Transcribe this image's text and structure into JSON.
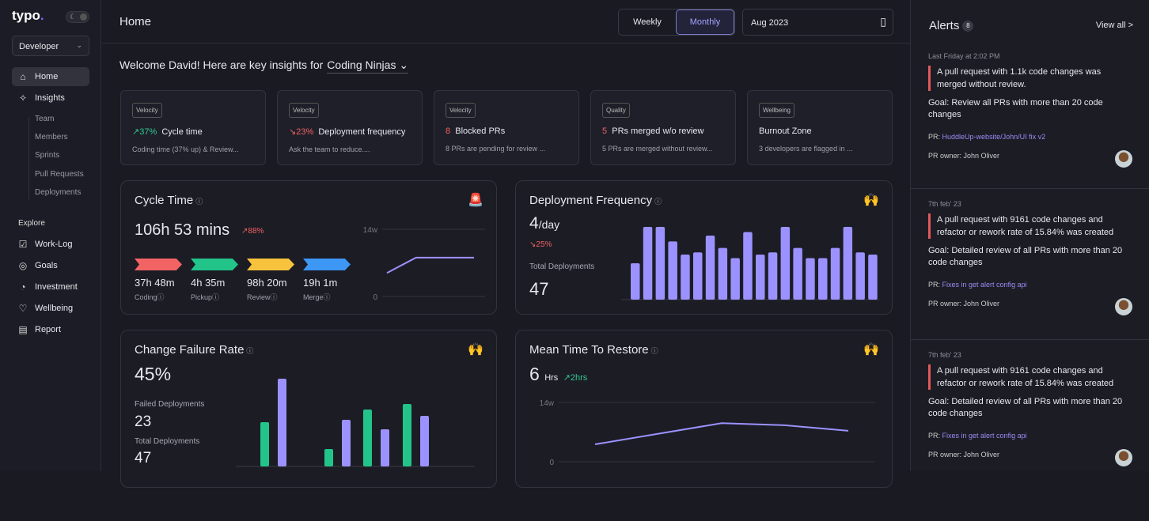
{
  "sidebar": {
    "logo": "typo",
    "theme_icon": "moon-icon",
    "role": "Developer",
    "items": [
      {
        "label": "Home",
        "icon": "home-icon"
      },
      {
        "label": "Insights",
        "icon": "sparkle-icon"
      }
    ],
    "insights_sub": [
      "Team",
      "Members",
      "Sprints",
      "Pull Requests",
      "Deployments"
    ],
    "explore_label": "Explore",
    "explore": [
      {
        "label": "Work-Log",
        "icon": "clipboard-icon"
      },
      {
        "label": "Goals",
        "icon": "target-icon"
      },
      {
        "label": "Investment",
        "icon": "pie-icon"
      },
      {
        "label": "Wellbeing",
        "icon": "head-heart-icon"
      },
      {
        "label": "Report",
        "icon": "report-icon"
      }
    ]
  },
  "header": {
    "title": "Home",
    "weekly": "Weekly",
    "monthly": "Monthly",
    "date": "Aug 2023"
  },
  "welcome": {
    "text": "Welcome David! Here are key insights for",
    "team": "Coding Ninjas"
  },
  "insights": [
    {
      "tag": "Velocity",
      "delta": "↗37%",
      "delta_color": "g",
      "title": "Cycle time",
      "desc": "Coding time (37% up) & Review..."
    },
    {
      "tag": "Velocity",
      "delta": "↘23%",
      "delta_color": "r",
      "title": "Deployment frequency",
      "desc": "Ask the team to reduce...."
    },
    {
      "tag": "Velocity",
      "delta": "8",
      "delta_color": "r",
      "title": "Blocked PRs",
      "desc": "8 PRs are pending for review ..."
    },
    {
      "tag": "Quality",
      "delta": "5",
      "delta_color": "r",
      "title": "PRs merged w/o review",
      "desc": "5 PRs are merged without review..."
    },
    {
      "tag": "Wellbeing",
      "delta": "",
      "delta_color": "r",
      "title": "Burnout Zone",
      "desc": "3 developers are flagged in ..."
    }
  ],
  "cycle": {
    "title": "Cycle Time",
    "value": "106h 53 mins",
    "delta": "↗88%",
    "stages": [
      {
        "value": "37h 48m",
        "label": "Coding",
        "color": "#f26464"
      },
      {
        "value": "4h 35m",
        "label": "Pickup",
        "color": "#22c48a"
      },
      {
        "value": "98h 20m",
        "label": "Review",
        "color": "#f7c23c"
      },
      {
        "value": "19h 1m",
        "label": "Merge",
        "color": "#3d97f5"
      }
    ]
  },
  "deploy": {
    "title": "Deployment Frequency",
    "value": "4",
    "unit": "/day",
    "delta": "↘25%",
    "total_label": "Total Deployments",
    "total": "47"
  },
  "cfr": {
    "title": "Change Failure Rate",
    "value": "45%",
    "failed_label": "Failed Deployments",
    "failed": "23",
    "total_label": "Total Deployments",
    "total": "47"
  },
  "mttr": {
    "title": "Mean Time To Restore",
    "value": "6",
    "unit": "Hrs",
    "delta": "↗2hrs"
  },
  "alerts": {
    "title": "Alerts",
    "count": "8",
    "view_all": "View all >",
    "items": [
      {
        "time": "Last Friday at 2:02 PM",
        "message": "A pull request with 1.1k code changes was merged without review.",
        "goal": "Goal: Review all PRs with more than 20 code changes",
        "pr_label": "PR:",
        "pr": "HuddleUp-website/John/UI fix v2",
        "owner": "PR owner: John Oliver"
      },
      {
        "time": "7th feb' 23",
        "message": "A pull request with 9161 code changes and refactor or rework rate of 15.84% was created",
        "goal": "Goal: Detailed review of all PRs with more than 20 code changes",
        "pr_label": "PR:",
        "pr": "Fixes in get alert config api",
        "owner": "PR owner: John Oliver"
      },
      {
        "time": "7th feb' 23",
        "message": "A pull request with 9161 code changes and refactor or rework rate of 15.84% was created",
        "goal": "Goal: Detailed review of all PRs with more than 20 code changes",
        "pr_label": "PR:",
        "pr": "Fixes in get alert config api",
        "owner": "PR owner: John Oliver"
      }
    ]
  },
  "colors": {
    "accent": "#9b92ff",
    "green": "#22c48a",
    "red": "#ef6363"
  },
  "chart_data": [
    {
      "id": "cycle",
      "type": "line",
      "yticks": [
        "14w",
        "0"
      ],
      "ylim": [
        0,
        14
      ],
      "values": [
        4.9,
        8.1,
        8.1,
        8.1
      ]
    },
    {
      "id": "deploy",
      "type": "bar",
      "ylim": [
        0,
        10
      ],
      "values": [
        5,
        10,
        10,
        8,
        6.2,
        6.5,
        8.8,
        7.1,
        5.7,
        9.3,
        6.2,
        6.5,
        10,
        7.1,
        5.7,
        5.7,
        7.1,
        10,
        6.5,
        6.2
      ]
    },
    {
      "id": "cfr",
      "type": "bar",
      "ylim": [
        0,
        120
      ],
      "series": [
        {
          "name": "failed",
          "color": "#22c48a",
          "values": [
            56,
            22,
            72,
            79
          ]
        },
        {
          "name": "total",
          "color": "#9b92ff",
          "values": [
            111,
            59,
            47,
            64
          ]
        }
      ]
    },
    {
      "id": "mttr",
      "type": "line",
      "yticks": [
        "14w",
        "0"
      ],
      "ylim": [
        0,
        14
      ],
      "values": [
        4.1,
        6.6,
        9.1,
        8.6,
        7.3
      ]
    }
  ]
}
